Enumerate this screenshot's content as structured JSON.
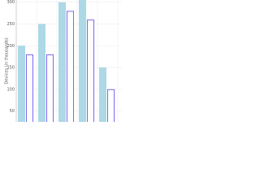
{
  "chart_data": {
    "type": "bar",
    "y_label": "Devices (in thousands)",
    "categories": [
      null,
      null,
      null,
      null,
      null
    ],
    "series": [
      {
        "color": "#add8e6",
        "style": "filled",
        "values": [
          200,
          250,
          300,
          310,
          150
        ]
      },
      {
        "color": "#7b68ee",
        "style": "outline",
        "values": [
          180,
          180,
          280,
          260,
          100
        ]
      }
    ],
    "ylim": [
      25,
      305
    ],
    "yticks": [
      50,
      100,
      150,
      200,
      250,
      300
    ],
    "grid": true
  }
}
